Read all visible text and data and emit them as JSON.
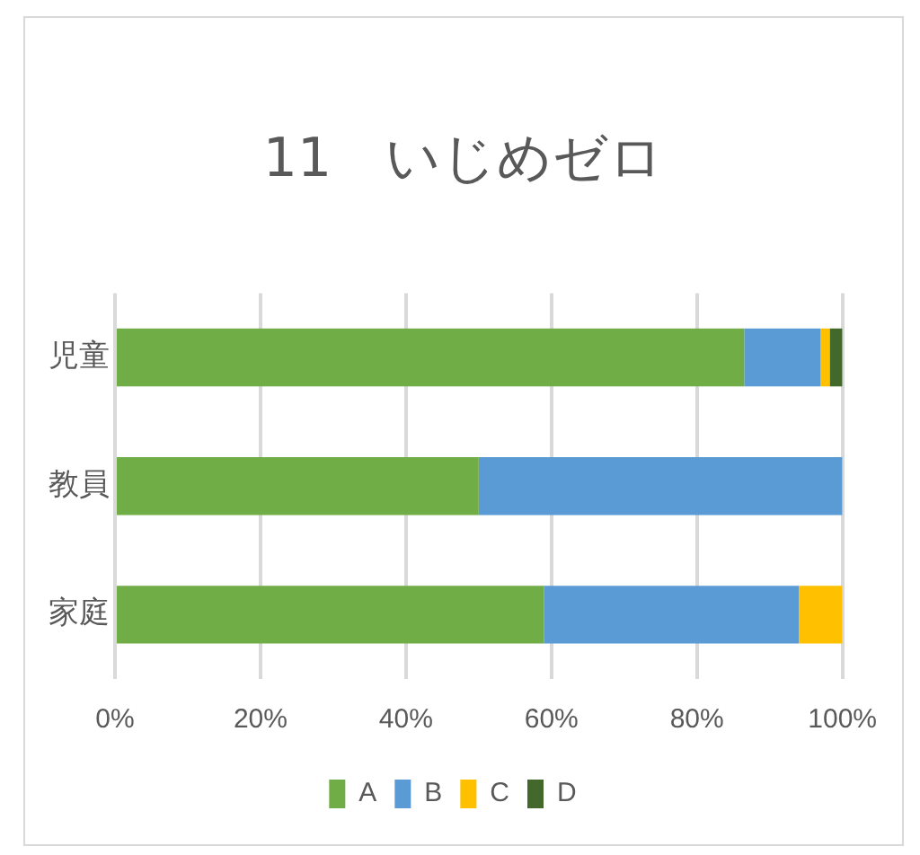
{
  "chart_data": {
    "type": "bar",
    "orientation": "horizontal",
    "stacked": true,
    "title": "11　いじめゼロ",
    "categories": [
      "児童",
      "教員",
      "家庭"
    ],
    "series": [
      {
        "name": "A",
        "color": "#70ad47",
        "values": [
          86.5,
          50,
          59
        ]
      },
      {
        "name": "B",
        "color": "#5b9bd5",
        "values": [
          10.5,
          50,
          35
        ]
      },
      {
        "name": "C",
        "color": "#ffc000",
        "values": [
          1.25,
          null,
          6
        ]
      },
      {
        "name": "D",
        "color": "#43682b",
        "values": [
          1.75,
          null,
          null
        ]
      }
    ],
    "xlim": [
      0,
      100
    ],
    "xticks": [
      {
        "value": 0,
        "label": "0%"
      },
      {
        "value": 20,
        "label": "20%"
      },
      {
        "value": 40,
        "label": "40%"
      },
      {
        "value": 60,
        "label": "60%"
      },
      {
        "value": 80,
        "label": "80%"
      },
      {
        "value": 100,
        "label": "100%"
      }
    ],
    "grid": "x",
    "legend": "bottom"
  }
}
